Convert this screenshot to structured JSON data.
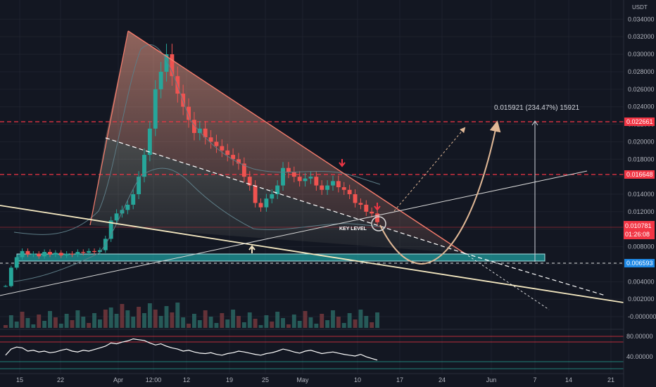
{
  "chart_data": [
    {
      "type": "candlestick",
      "quote_unit": "USDT",
      "y_ticks": [
        -0.0,
        0.002,
        0.004,
        0.006,
        0.008,
        0.01,
        0.012,
        0.014,
        0.016,
        0.018,
        0.02,
        0.022,
        0.024,
        0.026,
        0.028,
        0.03,
        0.032,
        0.034
      ],
      "y_tick_labels": [
        "-0.000000",
        "0.002000",
        "0.004000",
        "0.006000",
        "0.008000",
        "0.010000",
        "0.012000",
        "0.014000",
        "0.016000",
        "0.018000",
        "0.020000",
        "0.022000",
        "0.024000",
        "0.026000",
        "0.028000",
        "0.030000",
        "0.032000",
        "0.034000"
      ],
      "ylim": [
        -0.0008,
        0.0358
      ],
      "x_tick_labels": [
        "15",
        "22",
        "Apr",
        "12:00",
        "12",
        "19",
        "25",
        "May",
        "10",
        "17",
        "24",
        "Jun",
        "7",
        "14",
        "21"
      ],
      "levels": [
        {
          "value": 0.022661,
          "label": "0.022661",
          "color": "#f23645"
        },
        {
          "value": 0.016648,
          "label": "0.016648",
          "color": "#f23645"
        },
        {
          "value": 0.006593,
          "label": "0.006593",
          "color": "#1e88e5"
        }
      ],
      "current_price": {
        "value": 0.010781,
        "label": "0.010781",
        "countdown": "01:26:08"
      },
      "measure_label": "0.015921 (234.47%) 15921",
      "key_level_label": "KEY LEVEL",
      "close_series": [
        0.0035,
        0.0056,
        0.0068,
        0.0075,
        0.0071,
        0.0072,
        0.0069,
        0.0074,
        0.0071,
        0.0073,
        0.007,
        0.0072,
        0.0071,
        0.0074,
        0.0073,
        0.0075,
        0.0074,
        0.0076,
        0.0089,
        0.011,
        0.0118,
        0.0122,
        0.0128,
        0.014,
        0.016,
        0.0185,
        0.0215,
        0.026,
        0.028,
        0.03,
        0.0275,
        0.0255,
        0.024,
        0.0225,
        0.021,
        0.0215,
        0.0205,
        0.02,
        0.0195,
        0.019,
        0.0185,
        0.018,
        0.0175,
        0.016,
        0.015,
        0.013,
        0.0125,
        0.0135,
        0.014,
        0.015,
        0.017,
        0.0165,
        0.016,
        0.0155,
        0.0158,
        0.016,
        0.015,
        0.0145,
        0.015,
        0.0155,
        0.0148,
        0.0145,
        0.014,
        0.013,
        0.0128,
        0.012,
        0.0118,
        0.0108
      ]
    },
    {
      "type": "line",
      "name": "oscillator",
      "y_tick_labels": [
        "80.00000",
        "40.00000"
      ],
      "ylim": [
        0,
        100
      ],
      "values": [
        40,
        55,
        60,
        58,
        50,
        52,
        48,
        50,
        46,
        48,
        52,
        55,
        50,
        48,
        52,
        50,
        54,
        58,
        62,
        70,
        68,
        72,
        75,
        80,
        78,
        76,
        70,
        65,
        68,
        62,
        58,
        55,
        50,
        52,
        48,
        45,
        44,
        46,
        42,
        40,
        44,
        46,
        50,
        48,
        45,
        42,
        40,
        44,
        46,
        50,
        55,
        52,
        48,
        45,
        50,
        52,
        48,
        44,
        46,
        48,
        45,
        42,
        40,
        38,
        42,
        36,
        32,
        28
      ]
    }
  ]
}
